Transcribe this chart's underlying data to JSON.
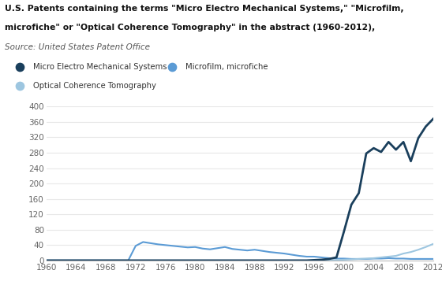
{
  "title_line1": "U.S. Patents containing the terms \"Micro Electro Mechanical Systems,\" \"Microfilm,",
  "title_line2": "microfiche\" or \"Optical Coherence Tomography\" in the abstract (1960-2012),",
  "title_source": "Source: United States Patent Office",
  "legend": [
    {
      "label": "Micro Electro Mechanical Systems",
      "color": "#1a3f5c"
    },
    {
      "label": "Microfilm, microfiche",
      "color": "#5b9bd5"
    },
    {
      "label": "Optical Coherence Tomography",
      "color": "#9dc6e0"
    }
  ],
  "mems": {
    "years": [
      1960,
      1961,
      1962,
      1963,
      1964,
      1965,
      1966,
      1967,
      1968,
      1969,
      1970,
      1971,
      1972,
      1973,
      1974,
      1975,
      1976,
      1977,
      1978,
      1979,
      1980,
      1981,
      1982,
      1983,
      1984,
      1985,
      1986,
      1987,
      1988,
      1989,
      1990,
      1991,
      1992,
      1993,
      1994,
      1995,
      1996,
      1997,
      1998,
      1999,
      2000,
      2001,
      2002,
      2003,
      2004,
      2005,
      2006,
      2007,
      2008,
      2009,
      2010,
      2011,
      2012
    ],
    "values": [
      0,
      0,
      0,
      0,
      0,
      0,
      0,
      0,
      0,
      0,
      0,
      0,
      0,
      0,
      0,
      0,
      0,
      0,
      0,
      0,
      0,
      0,
      0,
      0,
      0,
      0,
      0,
      0,
      0,
      0,
      0,
      0,
      0,
      0,
      0,
      0,
      1,
      2,
      4,
      8,
      75,
      145,
      175,
      278,
      292,
      282,
      308,
      288,
      308,
      258,
      318,
      348,
      368
    ]
  },
  "microfilm": {
    "years": [
      1960,
      1961,
      1962,
      1963,
      1964,
      1965,
      1966,
      1967,
      1968,
      1969,
      1970,
      1971,
      1972,
      1973,
      1974,
      1975,
      1976,
      1977,
      1978,
      1979,
      1980,
      1981,
      1982,
      1983,
      1984,
      1985,
      1986,
      1987,
      1988,
      1989,
      1990,
      1991,
      1992,
      1993,
      1994,
      1995,
      1996,
      1997,
      1998,
      1999,
      2000,
      2001,
      2002,
      2003,
      2004,
      2005,
      2006,
      2007,
      2008,
      2009,
      2010,
      2011,
      2012
    ],
    "values": [
      0,
      0,
      0,
      0,
      0,
      0,
      0,
      0,
      0,
      0,
      0,
      0,
      38,
      48,
      45,
      42,
      40,
      38,
      36,
      34,
      35,
      31,
      29,
      32,
      35,
      30,
      28,
      26,
      28,
      25,
      22,
      20,
      18,
      15,
      12,
      10,
      10,
      8,
      6,
      5,
      5,
      4,
      4,
      4,
      5,
      5,
      6,
      5,
      5,
      4,
      4,
      4,
      4
    ]
  },
  "oct": {
    "years": [
      1960,
      1961,
      1962,
      1963,
      1964,
      1965,
      1966,
      1967,
      1968,
      1969,
      1970,
      1971,
      1972,
      1973,
      1974,
      1975,
      1976,
      1977,
      1978,
      1979,
      1980,
      1981,
      1982,
      1983,
      1984,
      1985,
      1986,
      1987,
      1988,
      1989,
      1990,
      1991,
      1992,
      1993,
      1994,
      1995,
      1996,
      1997,
      1998,
      1999,
      2000,
      2001,
      2002,
      2003,
      2004,
      2005,
      2006,
      2007,
      2008,
      2009,
      2010,
      2011,
      2012
    ],
    "values": [
      0,
      0,
      0,
      0,
      0,
      0,
      0,
      0,
      0,
      0,
      0,
      0,
      0,
      0,
      0,
      0,
      0,
      0,
      0,
      0,
      0,
      0,
      0,
      0,
      0,
      0,
      0,
      0,
      0,
      0,
      0,
      0,
      0,
      0,
      0,
      0,
      0,
      0,
      0,
      1,
      2,
      3,
      4,
      5,
      6,
      8,
      10,
      12,
      18,
      22,
      28,
      35,
      43
    ]
  },
  "xlim": [
    1960,
    2012
  ],
  "ylim": [
    0,
    400
  ],
  "yticks": [
    0,
    40,
    80,
    120,
    160,
    200,
    240,
    280,
    320,
    360,
    400
  ],
  "xticks": [
    1960,
    1964,
    1968,
    1972,
    1976,
    1980,
    1984,
    1988,
    1992,
    1996,
    2000,
    2004,
    2008,
    2012
  ],
  "bg_color": "#ffffff",
  "grid_color": "#e8e8e8",
  "axis_color": "#bbbbbb",
  "tick_color": "#666666",
  "title_color": "#111111",
  "source_color": "#555555"
}
